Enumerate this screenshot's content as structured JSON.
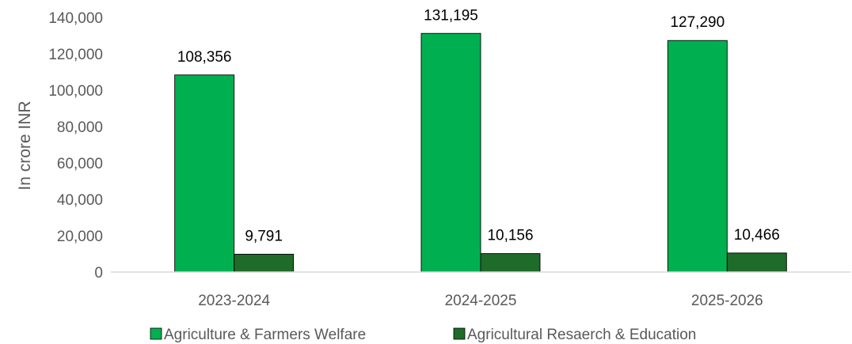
{
  "chart_data": {
    "type": "bar",
    "title": "",
    "xlabel": "",
    "ylabel": "In crore INR",
    "ylim": [
      0,
      140000
    ],
    "yticks": [
      0,
      20000,
      40000,
      60000,
      80000,
      100000,
      120000,
      140000
    ],
    "ytick_labels": [
      "0",
      "20,000",
      "40,000",
      "60,000",
      "80,000",
      "100,000",
      "120,000",
      "140,000"
    ],
    "grid": false,
    "legend_position": "bottom",
    "categories": [
      "2023-2024",
      "2024-2025",
      "2025-2026"
    ],
    "series": [
      {
        "name": "Agriculture & Farmers Welfare",
        "color": "#00b050",
        "values": [
          108356,
          131195,
          127290
        ],
        "labels": [
          "108,356",
          "131,195",
          "127,290"
        ]
      },
      {
        "name": "Agricultural Resaerch & Education",
        "color": "#1e6b2a",
        "values": [
          9791,
          10156,
          10466
        ],
        "labels": [
          "9,791",
          "10,156",
          "10,466"
        ]
      }
    ]
  }
}
